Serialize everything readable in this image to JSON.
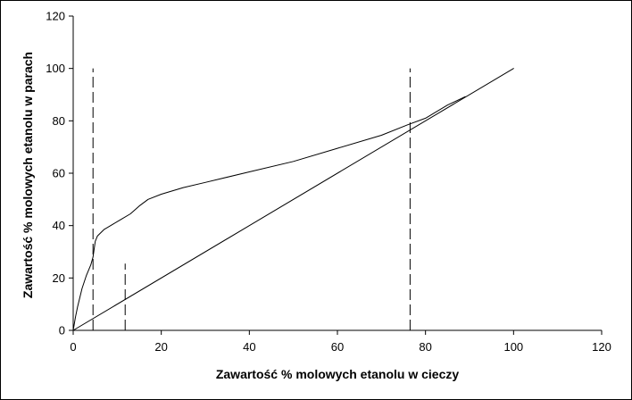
{
  "chart_data": {
    "type": "line",
    "title": "",
    "xlabel": "Zawartość % molowych etanolu w cieczy",
    "ylabel": "Zawartość % molowych etanolu w parach",
    "xlim": [
      0,
      120
    ],
    "ylim": [
      0,
      120
    ],
    "x_ticks": [
      0,
      20,
      40,
      60,
      80,
      100,
      120
    ],
    "y_ticks": [
      0,
      20,
      40,
      60,
      80,
      100,
      120
    ],
    "grid": false,
    "legend": "none",
    "colors": {
      "line": "#000000",
      "axis": "#000000",
      "background": "#ffffff"
    },
    "series": [
      {
        "values": [
          [
            0,
            0
          ],
          [
            0.5,
            5
          ],
          [
            1,
            9
          ],
          [
            2,
            16
          ],
          [
            3,
            21
          ],
          [
            4,
            25
          ],
          [
            4.5,
            28
          ],
          [
            5,
            34
          ],
          [
            5.5,
            36
          ],
          [
            7,
            38.5
          ],
          [
            9,
            40.5
          ],
          [
            11,
            42.5
          ],
          [
            13,
            44.5
          ],
          [
            15,
            47.5
          ],
          [
            17,
            50
          ],
          [
            20,
            52
          ],
          [
            25,
            54.5
          ],
          [
            30,
            56.5
          ],
          [
            40,
            60.5
          ],
          [
            50,
            64.5
          ],
          [
            60,
            69.5
          ],
          [
            70,
            74.5
          ],
          [
            76,
            78.5
          ],
          [
            80,
            81
          ],
          [
            85,
            86
          ],
          [
            89,
            89.2
          ]
        ]
      },
      {
        "values": [
          [
            0,
            0
          ],
          [
            100,
            100
          ]
        ]
      }
    ],
    "vertical_dashed_lines": [
      {
        "x": 4.5,
        "y_from": 0,
        "y_to": 100
      },
      {
        "x": 11.8,
        "y_from": 0,
        "y_to": 25.5
      },
      {
        "x": 76.5,
        "y_from": 0,
        "y_to": 100
      }
    ]
  }
}
